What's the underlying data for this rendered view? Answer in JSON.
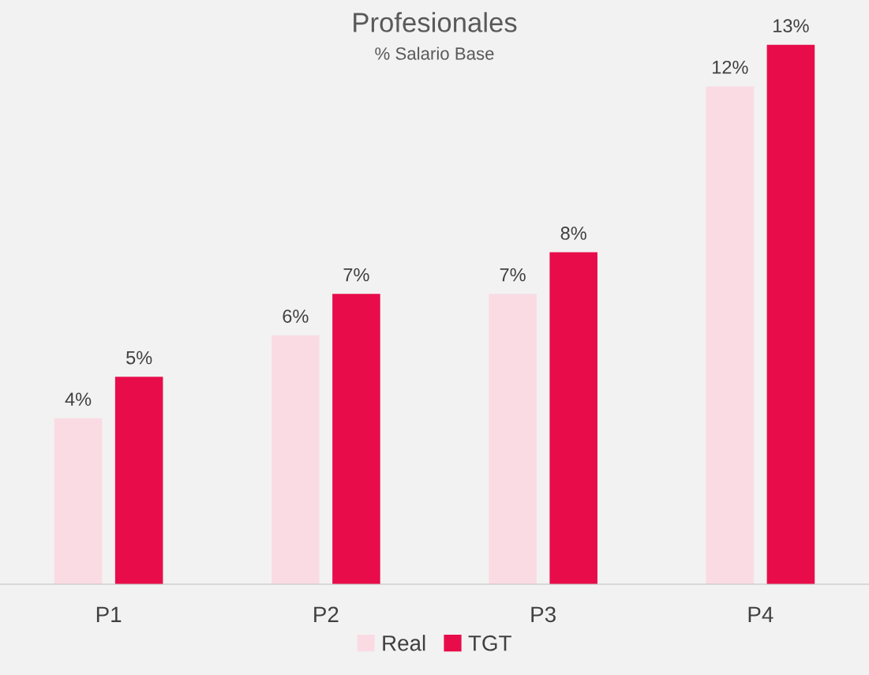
{
  "chart_data": {
    "type": "bar",
    "title": "Profesionales",
    "subtitle": "% Salario Base",
    "categories": [
      "P1",
      "P2",
      "P3",
      "P4"
    ],
    "series": [
      {
        "name": "Real",
        "color": "#fadbe4",
        "values": [
          4,
          6,
          7,
          12
        ],
        "value_labels": [
          "4%",
          "6%",
          "7%",
          "12%"
        ]
      },
      {
        "name": "TGT",
        "color": "#e80c4a",
        "values": [
          5,
          7,
          8,
          13
        ],
        "value_labels": [
          "5%",
          "7%",
          "8%",
          "13%"
        ]
      }
    ],
    "ylim": [
      0,
      14
    ],
    "tick_labels": "x",
    "grid": false,
    "legend": "bottom"
  }
}
